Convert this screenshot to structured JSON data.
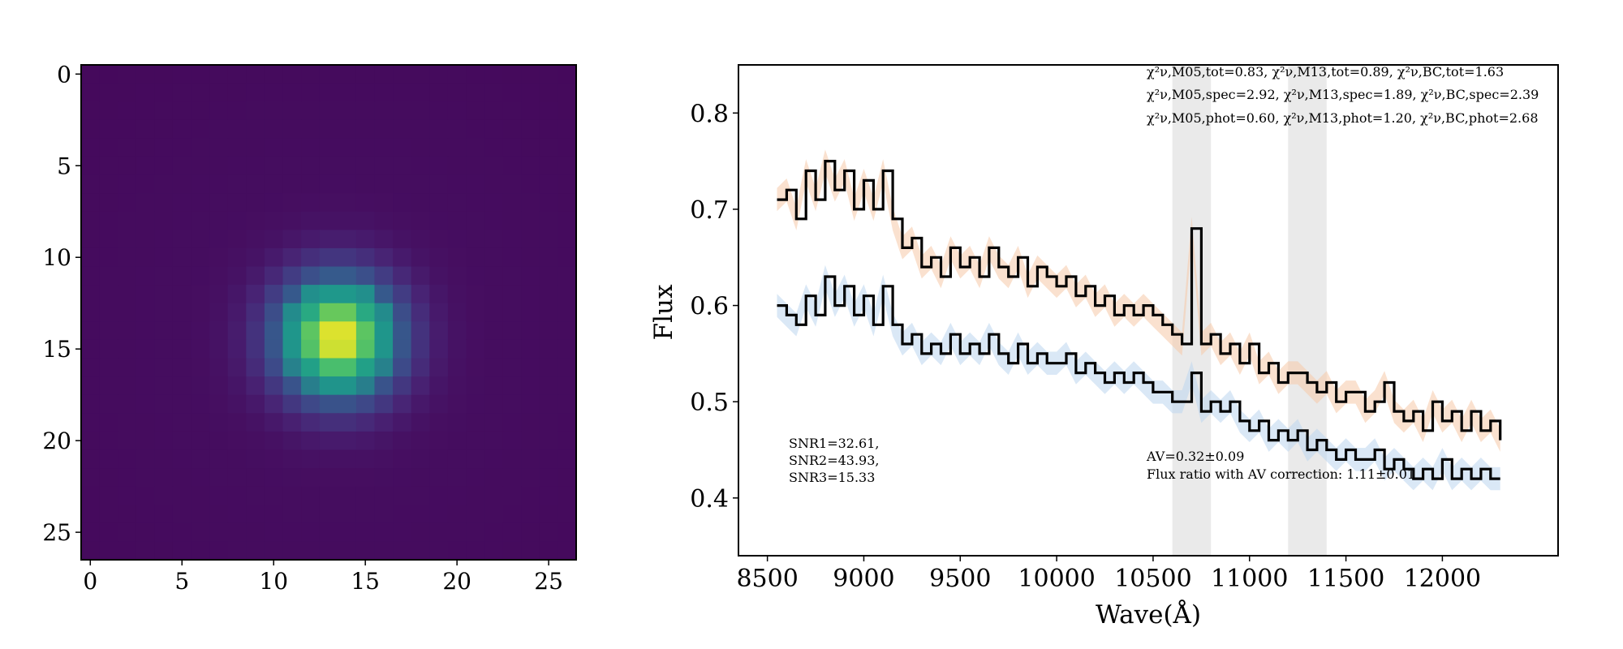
{
  "chart_data": [
    {
      "type": "heatmap",
      "colormap": "viridis",
      "xlim": [
        -0.5,
        26.5
      ],
      "ylim": [
        26.5,
        -0.5
      ],
      "xticks": [
        "0",
        "5",
        "10",
        "15",
        "20",
        "25"
      ],
      "yticks": [
        "0",
        "5",
        "10",
        "15",
        "20",
        "25"
      ],
      "grid_size": 27,
      "peak": {
        "x": 14,
        "y": 15
      },
      "psf_sigma": 2.3,
      "background": 0.0
    },
    {
      "type": "line",
      "xlabel": "Wave(Å)",
      "ylabel": "Flux",
      "xlim": [
        8350,
        12600
      ],
      "ylim": [
        0.34,
        0.85
      ],
      "xticks": [
        "8500",
        "9000",
        "9500",
        "10000",
        "10500",
        "11000",
        "11500",
        "12000"
      ],
      "yticks": [
        "0.4",
        "0.5",
        "0.6",
        "0.7",
        "0.8"
      ],
      "shaded_regions": [
        [
          10600,
          10800
        ],
        [
          11200,
          11400
        ]
      ],
      "series": [
        {
          "x": [
            8550,
            8600,
            8650,
            8700,
            8750,
            8800,
            8850,
            8900,
            8950,
            9000,
            9050,
            9100,
            9150,
            9200,
            9250,
            9300,
            9350,
            9400,
            9450,
            9500,
            9550,
            9600,
            9650,
            9700,
            9750,
            9800,
            9850,
            9900,
            9950,
            10000,
            10050,
            10100,
            10150,
            10200,
            10250,
            10300,
            10350,
            10400,
            10450,
            10500,
            10550,
            10600,
            10650,
            10700,
            10750,
            10800,
            10850,
            10900,
            10950,
            11000,
            11050,
            11100,
            11150,
            11200,
            11250,
            11300,
            11350,
            11400,
            11450,
            11500,
            11550,
            11600,
            11650,
            11700,
            11750,
            11800,
            11850,
            11900,
            11950,
            12000,
            12050,
            12100,
            12150,
            12200,
            12250,
            12300
          ],
          "y": [
            0.71,
            0.72,
            0.69,
            0.74,
            0.71,
            0.75,
            0.72,
            0.74,
            0.7,
            0.73,
            0.7,
            0.74,
            0.69,
            0.66,
            0.67,
            0.64,
            0.65,
            0.63,
            0.66,
            0.64,
            0.65,
            0.63,
            0.66,
            0.64,
            0.63,
            0.65,
            0.62,
            0.64,
            0.63,
            0.62,
            0.63,
            0.61,
            0.62,
            0.6,
            0.61,
            0.59,
            0.6,
            0.59,
            0.6,
            0.59,
            0.58,
            0.57,
            0.56,
            0.68,
            0.56,
            0.57,
            0.55,
            0.56,
            0.54,
            0.56,
            0.53,
            0.54,
            0.52,
            0.53,
            0.53,
            0.52,
            0.51,
            0.52,
            0.5,
            0.51,
            0.51,
            0.49,
            0.5,
            0.52,
            0.49,
            0.48,
            0.49,
            0.47,
            0.5,
            0.48,
            0.49,
            0.47,
            0.49,
            0.47,
            0.48,
            0.46
          ]
        },
        {
          "x": [
            8550,
            8600,
            8650,
            8700,
            8750,
            8800,
            8850,
            8900,
            8950,
            9000,
            9050,
            9100,
            9150,
            9200,
            9250,
            9300,
            9350,
            9400,
            9450,
            9500,
            9550,
            9600,
            9650,
            9700,
            9750,
            9800,
            9850,
            9900,
            9950,
            10000,
            10050,
            10100,
            10150,
            10200,
            10250,
            10300,
            10350,
            10400,
            10450,
            10500,
            10550,
            10600,
            10650,
            10700,
            10750,
            10800,
            10850,
            10900,
            10950,
            11000,
            11050,
            11100,
            11150,
            11200,
            11250,
            11300,
            11350,
            11400,
            11450,
            11500,
            11550,
            11600,
            11650,
            11700,
            11750,
            11800,
            11850,
            11900,
            11950,
            12000,
            12050,
            12100,
            12150,
            12200,
            12250,
            12300
          ],
          "y": [
            0.6,
            0.59,
            0.58,
            0.61,
            0.59,
            0.63,
            0.6,
            0.62,
            0.59,
            0.61,
            0.58,
            0.62,
            0.58,
            0.56,
            0.57,
            0.55,
            0.56,
            0.55,
            0.57,
            0.55,
            0.56,
            0.55,
            0.57,
            0.55,
            0.54,
            0.56,
            0.54,
            0.55,
            0.54,
            0.54,
            0.55,
            0.53,
            0.54,
            0.53,
            0.52,
            0.53,
            0.52,
            0.53,
            0.52,
            0.51,
            0.51,
            0.5,
            0.5,
            0.53,
            0.49,
            0.5,
            0.49,
            0.5,
            0.48,
            0.47,
            0.48,
            0.46,
            0.47,
            0.46,
            0.47,
            0.45,
            0.46,
            0.45,
            0.44,
            0.45,
            0.44,
            0.44,
            0.45,
            0.43,
            0.44,
            0.43,
            0.42,
            0.43,
            0.42,
            0.44,
            0.42,
            0.43,
            0.42,
            0.43,
            0.42,
            0.42
          ]
        }
      ],
      "annotations": {
        "chi_lines": [
          "χ²ν,M05,tot=0.83, χ²ν,M13,tot=0.89, χ²ν,BC,tot=1.63",
          "χ²ν,M05,spec=2.92, χ²ν,M13,spec=1.89, χ²ν,BC,spec=2.39",
          "χ²ν,M05,phot=0.60, χ²ν,M13,phot=1.20, χ²ν,BC,phot=2.68"
        ],
        "snr_lines": [
          "SNR1=32.61,",
          "SNR2=43.93,",
          "SNR3=15.33"
        ],
        "av_lines": [
          "AV=0.32±0.09",
          "Flux ratio with AV correction: 1.11±0.01"
        ]
      },
      "colors": {
        "line": "#000000",
        "band_orange": "#f5c9a8",
        "band_blue": "#bcd6ee",
        "shade": "#d9d9d9"
      }
    }
  ]
}
